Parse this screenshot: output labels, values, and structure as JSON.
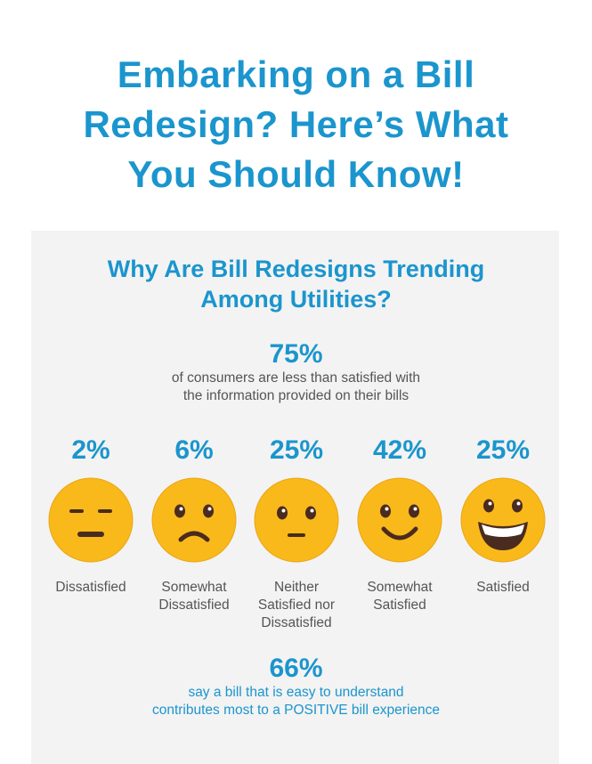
{
  "header": {
    "title_lines": [
      "Embarking on a Bill",
      "Redesign? Here’s What",
      "You Should Know!"
    ]
  },
  "section": {
    "title_lines": [
      "Why Are Bill Redesigns Trending",
      "Among Utilities?"
    ]
  },
  "stat_top": {
    "value": "75%",
    "desc_lines": [
      "of consumers are less than satisfied with",
      "the information provided on their bills"
    ]
  },
  "satisfaction": [
    {
      "percent": "2%",
      "label_lines": [
        "Dissatisfied"
      ],
      "face": "dissatisfied-face-icon"
    },
    {
      "percent": "6%",
      "label_lines": [
        "Somewhat",
        "Dissatisfied"
      ],
      "face": "frowning-face-icon"
    },
    {
      "percent": "25%",
      "label_lines": [
        "Neither",
        "Satisfied nor",
        "Dissatisfied"
      ],
      "face": "neutral-face-icon"
    },
    {
      "percent": "42%",
      "label_lines": [
        "Somewhat",
        "Satisfied"
      ],
      "face": "smiling-face-icon"
    },
    {
      "percent": "25%",
      "label_lines": [
        "Satisfied"
      ],
      "face": "grinning-face-icon"
    }
  ],
  "stat_bottom": {
    "value": "66%",
    "desc_lines": [
      "say a bill that is easy to understand",
      "contributes most to a POSITIVE bill experience"
    ]
  },
  "colors": {
    "accent": "#1b95cd",
    "panel": "#f3f3f3",
    "face": "#f9b91b",
    "feature": "#4a2b1f"
  }
}
